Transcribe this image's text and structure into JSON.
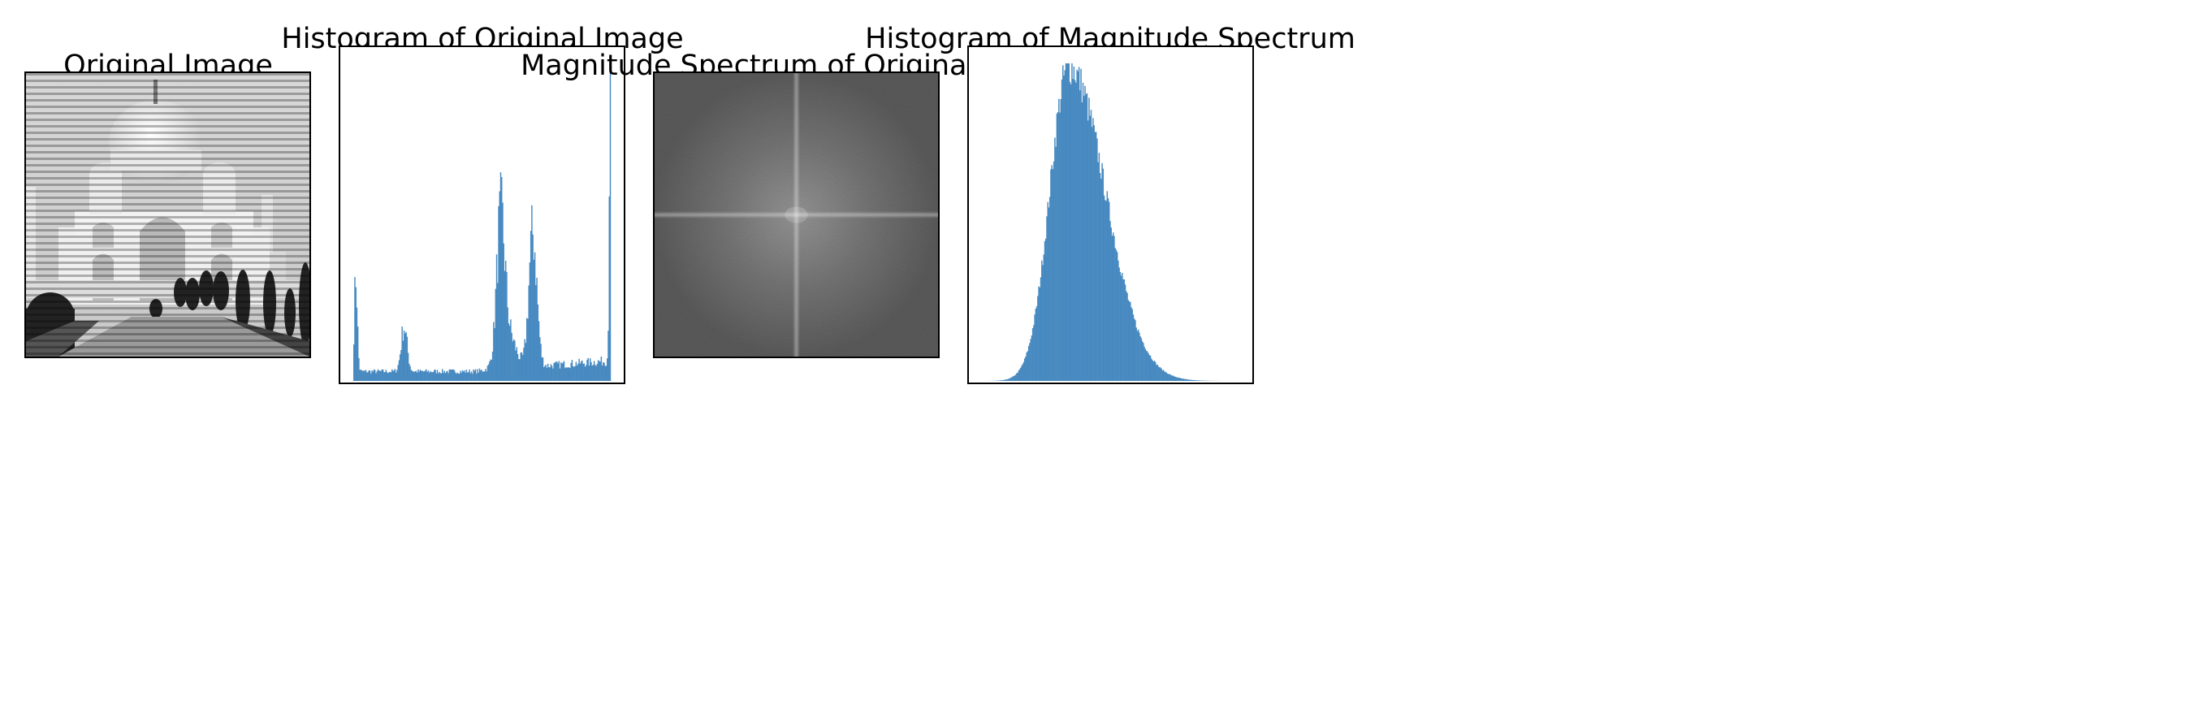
{
  "figure": {
    "panels": [
      {
        "id": "original",
        "title": "Original Image"
      },
      {
        "id": "hist_original",
        "title": "Histogram of Original Image"
      },
      {
        "id": "spectrum",
        "title": "Magnitude Spectrum of Original Image"
      },
      {
        "id": "hist_spectrum",
        "title": "Histogram of Magnitude Spectrum"
      }
    ]
  },
  "colors": {
    "bar_fill": "#4689c0",
    "axes_edge": "#000000",
    "spectrum_base": "#6e6e6e"
  },
  "chart_data": [
    {
      "type": "bar",
      "title": "Histogram of Original Image",
      "xlabel": "",
      "ylabel": "",
      "xlim": [
        0,
        255
      ],
      "ylim": [
        0,
        100
      ],
      "grid": false,
      "ticks": false,
      "x_bins": 256,
      "shape": {
        "base_level": 3,
        "peaks": [
          {
            "center": 2,
            "width": 1.5,
            "height": 30
          },
          {
            "center": 50,
            "width": 3,
            "height": 14
          },
          {
            "center": 146,
            "width": 4,
            "height": 40
          },
          {
            "center": 178,
            "width": 4,
            "height": 42
          },
          {
            "center": 152,
            "width": 8,
            "height": 12
          },
          {
            "center": 255,
            "width": 1,
            "height": 100
          }
        ]
      }
    },
    {
      "type": "bar",
      "title": "Histogram of Magnitude Spectrum",
      "xlabel": "",
      "ylabel": "",
      "xlim": [
        0,
        255
      ],
      "ylim": [
        0,
        100
      ],
      "grid": false,
      "ticks": false,
      "x_bins": 256,
      "shape": {
        "distribution": "skewed-normal",
        "mode": 86,
        "left_spread": 19,
        "right_spread": 36,
        "peak_height": 100
      }
    }
  ]
}
